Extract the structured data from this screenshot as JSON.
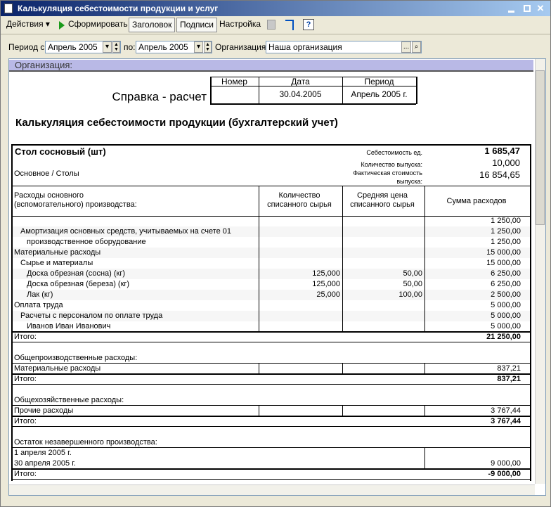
{
  "window": {
    "title": "Калькуляция себестоимости продукции и услуг"
  },
  "toolbar": {
    "actions": "Действия",
    "generate": "Сформировать",
    "header": "Заголовок",
    "signatures": "Подписи",
    "settings": "Настройка",
    "help": "?"
  },
  "filters": {
    "period_from_label": "Период с:",
    "period_from": "Апрель 2005",
    "period_to_label": "по:",
    "period_to": "Апрель 2005",
    "org_label": "Организация:",
    "org": "Наша организация",
    "org_button": "..."
  },
  "report": {
    "section_header": "Организация:",
    "doc_title": "Справка - расчет",
    "doc_table": {
      "headers": [
        "Номер",
        "Дата",
        "Период"
      ],
      "date": "30.04.2005",
      "period": "Апрель 2005 г."
    },
    "heading": "Калькуляция себестоимости продукции (бухгалтерский учет)",
    "product": {
      "name": "Стол сосновый (шт)",
      "group": "Основное / Столы",
      "cost_label": "Себестоимость ед.",
      "cost": "1 685,47",
      "qty_label": "Количество выпуска:",
      "qty": "10,000",
      "actual_label": "Фактическая стоимость\nвыпуска:",
      "actual": "16 854,65"
    },
    "columns": [
      "Расходы основного\n(вспомогательного) производства:",
      "Количество\nсписанного сырья",
      "Средняя цена\nсписанного сырья",
      "Сумма расходов"
    ],
    "sections": [
      {
        "rows": [
          {
            "level": 0,
            "sum": "1 250,00"
          },
          {
            "label": "Амортизация основных средств, учитываемых на счете 01",
            "level": 1,
            "sum": "1 250,00"
          },
          {
            "label": "производственное оборудование",
            "level": 2,
            "sum": "1 250,00"
          },
          {
            "label": "Материальные расходы",
            "level": 0,
            "sum": "15 000,00"
          },
          {
            "label": "Сырье и материалы",
            "level": 1,
            "sum": "15 000,00"
          },
          {
            "label": "Доска обрезная (сосна) (кг)",
            "level": 2,
            "qty": "125,000",
            "price": "50,00",
            "sum": "6 250,00"
          },
          {
            "label": "Доска обрезная (береза) (кг)",
            "level": 2,
            "qty": "125,000",
            "price": "50,00",
            "sum": "6 250,00"
          },
          {
            "label": "Лак (кг)",
            "level": 2,
            "qty": "25,000",
            "price": "100,00",
            "sum": "2 500,00"
          },
          {
            "label": "Оплата труда",
            "level": 0,
            "sum": "5 000,00"
          },
          {
            "label": "Расчеты с персоналом по оплате труда",
            "level": 1,
            "sum": "5 000,00"
          },
          {
            "label": "Иванов Иван Иванович",
            "level": 2,
            "sum": "5 000,00"
          }
        ],
        "total": {
          "label": "Итого:",
          "sum": "21 250,00"
        }
      },
      {
        "title": "Общепроизводственные расходы:",
        "rows": [
          {
            "label": "Материальные расходы",
            "level": 0,
            "sum": "837,21"
          }
        ],
        "total": {
          "label": "Итого:",
          "sum": "837,21"
        }
      },
      {
        "title": "Общехозяйственные расходы:",
        "rows": [
          {
            "label": "Прочие расходы",
            "level": 0,
            "sum": "3 767,44"
          }
        ],
        "total": {
          "label": "Итого:",
          "sum": "3 767,44"
        }
      },
      {
        "title": "Остаток незавершенного производства:",
        "rows": [
          {
            "label": "1 апреля 2005 г.",
            "level": 0
          },
          {
            "label": "30 апреля 2005 г.",
            "level": 0,
            "sum": "9 000,00"
          }
        ],
        "total": {
          "label": "Итого:",
          "sum": "-9 000,00"
        }
      }
    ]
  }
}
